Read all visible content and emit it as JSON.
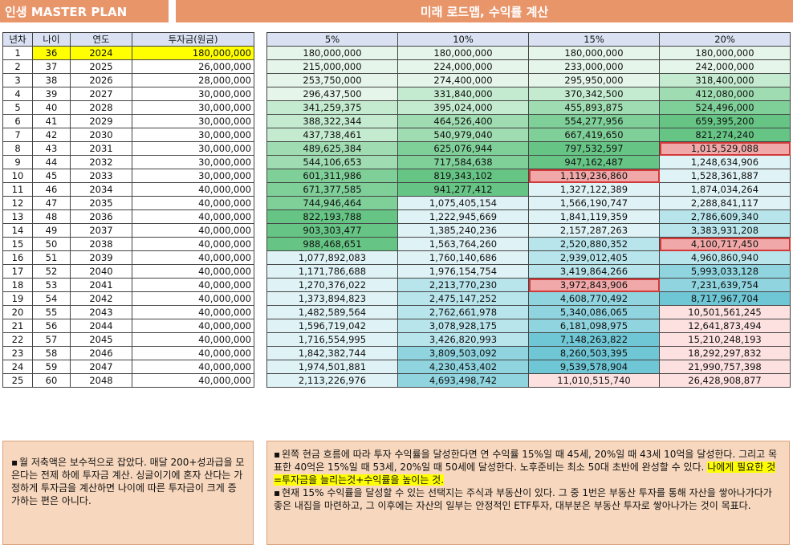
{
  "header": {
    "left_title": "인생 MASTER PLAN",
    "right_title": "미래 로드맵, 수익률 계산"
  },
  "left_table": {
    "columns": [
      "년차",
      "나이",
      "연도",
      "투자금(원금)"
    ],
    "rows": [
      [
        "1",
        "36",
        "2024",
        "180,000,000"
      ],
      [
        "2",
        "37",
        "2025",
        "26,000,000"
      ],
      [
        "3",
        "38",
        "2026",
        "28,000,000"
      ],
      [
        "4",
        "39",
        "2027",
        "30,000,000"
      ],
      [
        "5",
        "40",
        "2028",
        "30,000,000"
      ],
      [
        "6",
        "41",
        "2029",
        "30,000,000"
      ],
      [
        "7",
        "42",
        "2030",
        "30,000,000"
      ],
      [
        "8",
        "43",
        "2031",
        "30,000,000"
      ],
      [
        "9",
        "44",
        "2032",
        "30,000,000"
      ],
      [
        "10",
        "45",
        "2033",
        "30,000,000"
      ],
      [
        "11",
        "46",
        "2034",
        "40,000,000"
      ],
      [
        "12",
        "47",
        "2035",
        "40,000,000"
      ],
      [
        "13",
        "48",
        "2036",
        "40,000,000"
      ],
      [
        "14",
        "49",
        "2037",
        "40,000,000"
      ],
      [
        "15",
        "50",
        "2038",
        "40,000,000"
      ],
      [
        "16",
        "51",
        "2039",
        "40,000,000"
      ],
      [
        "17",
        "52",
        "2040",
        "40,000,000"
      ],
      [
        "18",
        "53",
        "2041",
        "40,000,000"
      ],
      [
        "19",
        "54",
        "2042",
        "40,000,000"
      ],
      [
        "20",
        "55",
        "2043",
        "40,000,000"
      ],
      [
        "21",
        "56",
        "2044",
        "40,000,000"
      ],
      [
        "22",
        "57",
        "2045",
        "40,000,000"
      ],
      [
        "23",
        "58",
        "2046",
        "40,000,000"
      ],
      [
        "24",
        "59",
        "2047",
        "40,000,000"
      ],
      [
        "25",
        "60",
        "2048",
        "40,000,000"
      ]
    ]
  },
  "right_table": {
    "columns": [
      "5%",
      "10%",
      "15%",
      "20%"
    ],
    "rows": [
      [
        "180,000,000",
        "180,000,000",
        "180,000,000",
        "180,000,000"
      ],
      [
        "215,000,000",
        "224,000,000",
        "233,000,000",
        "242,000,000"
      ],
      [
        "253,750,000",
        "274,400,000",
        "295,950,000",
        "318,400,000"
      ],
      [
        "296,437,500",
        "331,840,000",
        "370,342,500",
        "412,080,000"
      ],
      [
        "341,259,375",
        "395,024,000",
        "455,893,875",
        "524,496,000"
      ],
      [
        "388,322,344",
        "464,526,400",
        "554,277,956",
        "659,395,200"
      ],
      [
        "437,738,461",
        "540,979,040",
        "667,419,650",
        "821,274,240"
      ],
      [
        "489,625,384",
        "625,076,944",
        "797,532,597",
        "1,015,529,088"
      ],
      [
        "544,106,653",
        "717,584,638",
        "947,162,487",
        "1,248,634,906"
      ],
      [
        "601,311,986",
        "819,343,102",
        "1,119,236,860",
        "1,528,361,887"
      ],
      [
        "671,377,585",
        "941,277,412",
        "1,327,122,389",
        "1,874,034,264"
      ],
      [
        "744,946,464",
        "1,075,405,154",
        "1,566,190,747",
        "2,288,841,117"
      ],
      [
        "822,193,788",
        "1,222,945,669",
        "1,841,119,359",
        "2,786,609,340"
      ],
      [
        "903,303,477",
        "1,385,240,236",
        "2,157,287,263",
        "3,383,931,208"
      ],
      [
        "988,468,651",
        "1,563,764,260",
        "2,520,880,352",
        "4,100,717,450"
      ],
      [
        "1,077,892,083",
        "1,760,140,686",
        "2,939,012,405",
        "4,960,860,940"
      ],
      [
        "1,171,786,688",
        "1,976,154,754",
        "3,419,864,266",
        "5,993,033,128"
      ],
      [
        "1,270,376,022",
        "2,213,770,230",
        "3,972,843,906",
        "7,231,639,754"
      ],
      [
        "1,373,894,823",
        "2,475,147,252",
        "4,608,770,492",
        "8,717,967,704"
      ],
      [
        "1,482,589,564",
        "2,762,661,978",
        "5,340,086,065",
        "10,501,561,245"
      ],
      [
        "1,596,719,042",
        "3,078,928,175",
        "6,181,098,975",
        "12,641,873,494"
      ],
      [
        "1,716,554,995",
        "3,426,820,993",
        "7,148,263,822",
        "15,210,248,193"
      ],
      [
        "1,842,382,744",
        "3,809,503,092",
        "8,260,503,395",
        "18,292,297,832"
      ],
      [
        "1,974,501,881",
        "4,230,453,402",
        "9,539,578,904",
        "21,990,757,398"
      ],
      [
        "2,113,226,976",
        "4,693,498,742",
        "11,010,515,740",
        "26,428,908,877"
      ]
    ],
    "cell_classes": [
      [
        "g1",
        "g1",
        "g1",
        "g1"
      ],
      [
        "g1",
        "g1",
        "g1",
        "g1"
      ],
      [
        "g1",
        "g1",
        "g1",
        "g2"
      ],
      [
        "g1",
        "g2",
        "g2",
        "g3"
      ],
      [
        "g2",
        "g2",
        "g3",
        "g4"
      ],
      [
        "g2",
        "g3",
        "g4",
        "g5"
      ],
      [
        "g2",
        "g3",
        "g4",
        "g5"
      ],
      [
        "g3",
        "g4",
        "g5",
        "pr"
      ],
      [
        "g3",
        "g4",
        "g5",
        "t1"
      ],
      [
        "g4",
        "g5",
        "pr",
        "t1"
      ],
      [
        "g4",
        "g5",
        "t1",
        "t1"
      ],
      [
        "g4",
        "t1",
        "t1",
        "t1"
      ],
      [
        "g5",
        "t1",
        "t1",
        "t2"
      ],
      [
        "g5",
        "t1",
        "t1",
        "t2"
      ],
      [
        "g5",
        "t1",
        "t2",
        "pr"
      ],
      [
        "t1",
        "t1",
        "t2",
        "t2"
      ],
      [
        "t1",
        "t1",
        "t2",
        "t3"
      ],
      [
        "t1",
        "t2",
        "pr",
        "t3"
      ],
      [
        "t1",
        "t2",
        "t3",
        "t4"
      ],
      [
        "t1",
        "t2",
        "t3",
        "p1"
      ],
      [
        "t1",
        "t2",
        "t3",
        "p1"
      ],
      [
        "t1",
        "t2",
        "t4",
        "p1"
      ],
      [
        "t1",
        "t3",
        "t4",
        "p1"
      ],
      [
        "t1",
        "t3",
        "t4",
        "p1"
      ],
      [
        "t1",
        "t3",
        "p1",
        "p1"
      ]
    ]
  },
  "notes": {
    "left": {
      "bullet": "▪",
      "text": "월 저축액은 보수적으로 잡았다. 매달 200+성과급을 모은다는 전제 하에 투자금 계산. 싱글이기에 혼자 산다는 가정하게 투자금을 계산하면 나이에 따른 투자금이 크게 증가하는 편은 아니다."
    },
    "right": {
      "bullet": "▪",
      "p1_a": "왼쪽 현금 흐름에 따라 투자 수익률을 달성한다면 연 수익률 15%일 때 45세, 20%일 때 43세 10억을 달성한다. 그리고 목표한 40억은 15%일 때 53세, 20%일 때 50세에 달성한다. 노후준비는 최소 50대 초반에 완성할 수 있다.",
      "p1_highlight": "나에게 필요한 것=투자금을 늘리는것+수익률을 높이는 것.",
      "p2": "현재 15% 수익률을 달성할 수 있는 선택지는 주식과 부동산이 있다. 그 중 1번은 부동산 투자를 통해 자산을 쌓아나가다가 좋은 내집을 마련하고, 그 이후에는 자산의 일부는 안정적인 ETF투자, 대부분은 부동산 투자로 쌓아나가는 것이 목표다."
    }
  }
}
